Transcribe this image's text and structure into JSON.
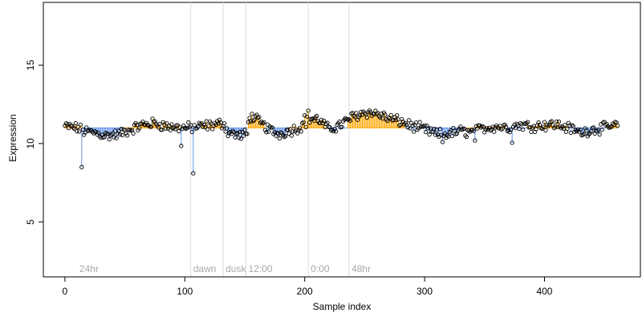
{
  "chart_data": {
    "type": "scatter",
    "title": "",
    "xlabel": "Sample index",
    "ylabel": "Expression",
    "xlim": [
      -18,
      480
    ],
    "ylim": [
      1.5,
      19
    ],
    "xticks": [
      0,
      100,
      200,
      300,
      400
    ],
    "yticks": [
      5,
      10,
      15
    ],
    "baseline": 11,
    "grid": false,
    "point_style": "open circle",
    "colors": {
      "above": "#ffa500",
      "below": "#6495ed",
      "vline": "#dcdcdc",
      "annotation": "#a9a9a9"
    },
    "segments": [
      {
        "start": 0,
        "end": 15,
        "above": true
      },
      {
        "start": 15,
        "end": 32,
        "above": false
      },
      {
        "start": 32,
        "end": 48,
        "above": false
      },
      {
        "start": 48,
        "end": 66,
        "above": true
      },
      {
        "start": 66,
        "end": 82,
        "above": true
      },
      {
        "start": 82,
        "end": 98,
        "above": true
      },
      {
        "start": 98,
        "end": 114,
        "above": false
      },
      {
        "start": 114,
        "end": 133,
        "above": true
      },
      {
        "start": 133,
        "end": 152,
        "above": false
      },
      {
        "start": 152,
        "end": 168,
        "above": true
      },
      {
        "start": 168,
        "end": 186,
        "above": false
      },
      {
        "start": 186,
        "end": 202,
        "above": true
      },
      {
        "start": 202,
        "end": 218,
        "above": true
      },
      {
        "start": 218,
        "end": 236,
        "above": false
      },
      {
        "start": 236,
        "end": 252,
        "above": true
      },
      {
        "start": 252,
        "end": 268,
        "above": true
      },
      {
        "start": 268,
        "end": 284,
        "above": true
      },
      {
        "start": 284,
        "end": 300,
        "above": false
      },
      {
        "start": 300,
        "end": 318,
        "above": false
      },
      {
        "start": 318,
        "end": 334,
        "above": false
      },
      {
        "start": 334,
        "end": 352,
        "above": true
      },
      {
        "start": 352,
        "end": 368,
        "above": true
      },
      {
        "start": 368,
        "end": 386,
        "above": false
      },
      {
        "start": 386,
        "end": 402,
        "above": true
      },
      {
        "start": 402,
        "end": 420,
        "above": true
      },
      {
        "start": 420,
        "end": 436,
        "above": false
      },
      {
        "start": 436,
        "end": 452,
        "above": false
      },
      {
        "start": 452,
        "end": 462,
        "above": true
      }
    ],
    "trend_knots": [
      [
        0,
        11.1
      ],
      [
        10,
        11.0
      ],
      [
        15,
        10.8
      ],
      [
        25,
        10.7
      ],
      [
        35,
        10.5
      ],
      [
        45,
        10.6
      ],
      [
        55,
        10.9
      ],
      [
        65,
        11.2
      ],
      [
        75,
        11.3
      ],
      [
        85,
        11.1
      ],
      [
        95,
        11.0
      ],
      [
        105,
        11.0
      ],
      [
        115,
        11.1
      ],
      [
        125,
        11.2
      ],
      [
        133,
        11.3
      ],
      [
        135,
        10.8
      ],
      [
        145,
        10.5
      ],
      [
        152,
        10.6
      ],
      [
        154,
        11.8
      ],
      [
        160,
        11.5
      ],
      [
        170,
        10.9
      ],
      [
        178,
        10.6
      ],
      [
        186,
        10.8
      ],
      [
        195,
        11.0
      ],
      [
        205,
        11.6
      ],
      [
        212,
        11.5
      ],
      [
        220,
        10.9
      ],
      [
        230,
        11.2
      ],
      [
        240,
        11.7
      ],
      [
        250,
        12.0
      ],
      [
        260,
        11.9
      ],
      [
        270,
        11.6
      ],
      [
        280,
        11.4
      ],
      [
        290,
        11.1
      ],
      [
        300,
        10.9
      ],
      [
        310,
        10.6
      ],
      [
        320,
        10.6
      ],
      [
        330,
        10.8
      ],
      [
        340,
        10.7
      ],
      [
        350,
        11.0
      ],
      [
        360,
        11.1
      ],
      [
        370,
        11.0
      ],
      [
        380,
        11.2
      ],
      [
        390,
        11.1
      ],
      [
        400,
        11.2
      ],
      [
        410,
        11.2
      ],
      [
        420,
        11.0
      ],
      [
        430,
        10.7
      ],
      [
        440,
        10.9
      ],
      [
        450,
        11.0
      ],
      [
        462,
        11.2
      ]
    ],
    "outliers": [
      {
        "x": 14,
        "y": 8.5
      },
      {
        "x": 97,
        "y": 9.85
      },
      {
        "x": 107,
        "y": 8.1
      },
      {
        "x": 200,
        "y": 11.8
      },
      {
        "x": 203,
        "y": 12.1
      },
      {
        "x": 315,
        "y": 10.1
      },
      {
        "x": 342,
        "y": 10.2
      },
      {
        "x": 373,
        "y": 10.05
      }
    ],
    "n_points": 462,
    "annotations": [
      {
        "x": 10,
        "label": "24hr",
        "vline": false
      },
      {
        "x": 105,
        "label": "dawn",
        "vline": true
      },
      {
        "x": 132,
        "label": "dusk",
        "vline": true
      },
      {
        "x": 151,
        "label": "12:00",
        "vline": true
      },
      {
        "x": 203,
        "label": "0:00",
        "vline": true
      },
      {
        "x": 237,
        "label": "48hr",
        "vline": true
      }
    ]
  }
}
